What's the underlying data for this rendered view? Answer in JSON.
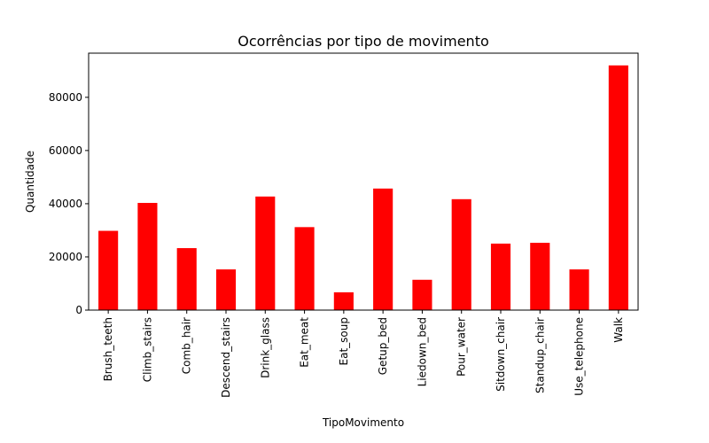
{
  "chart_data": {
    "type": "bar",
    "title": "Ocorrências por tipo de movimento",
    "xlabel": "TipoMovimento",
    "ylabel": "Quantidade",
    "categories": [
      "Brush_teeth",
      "Climb_stairs",
      "Comb_hair",
      "Descend_stairs",
      "Drink_glass",
      "Eat_meat",
      "Eat_soup",
      "Getup_bed",
      "Liedown_bed",
      "Pour_water",
      "Sitdown_chair",
      "Standup_chair",
      "Use_telephone",
      "Walk"
    ],
    "values": [
      29800,
      40300,
      23300,
      15300,
      42700,
      31200,
      6700,
      45700,
      11400,
      41700,
      25000,
      25300,
      15300,
      92000
    ],
    "ylim": [
      0,
      96600
    ],
    "yticks": [
      0,
      20000,
      40000,
      60000,
      80000
    ],
    "grid": false,
    "legend": "none",
    "bar_color": "#ff0000"
  }
}
